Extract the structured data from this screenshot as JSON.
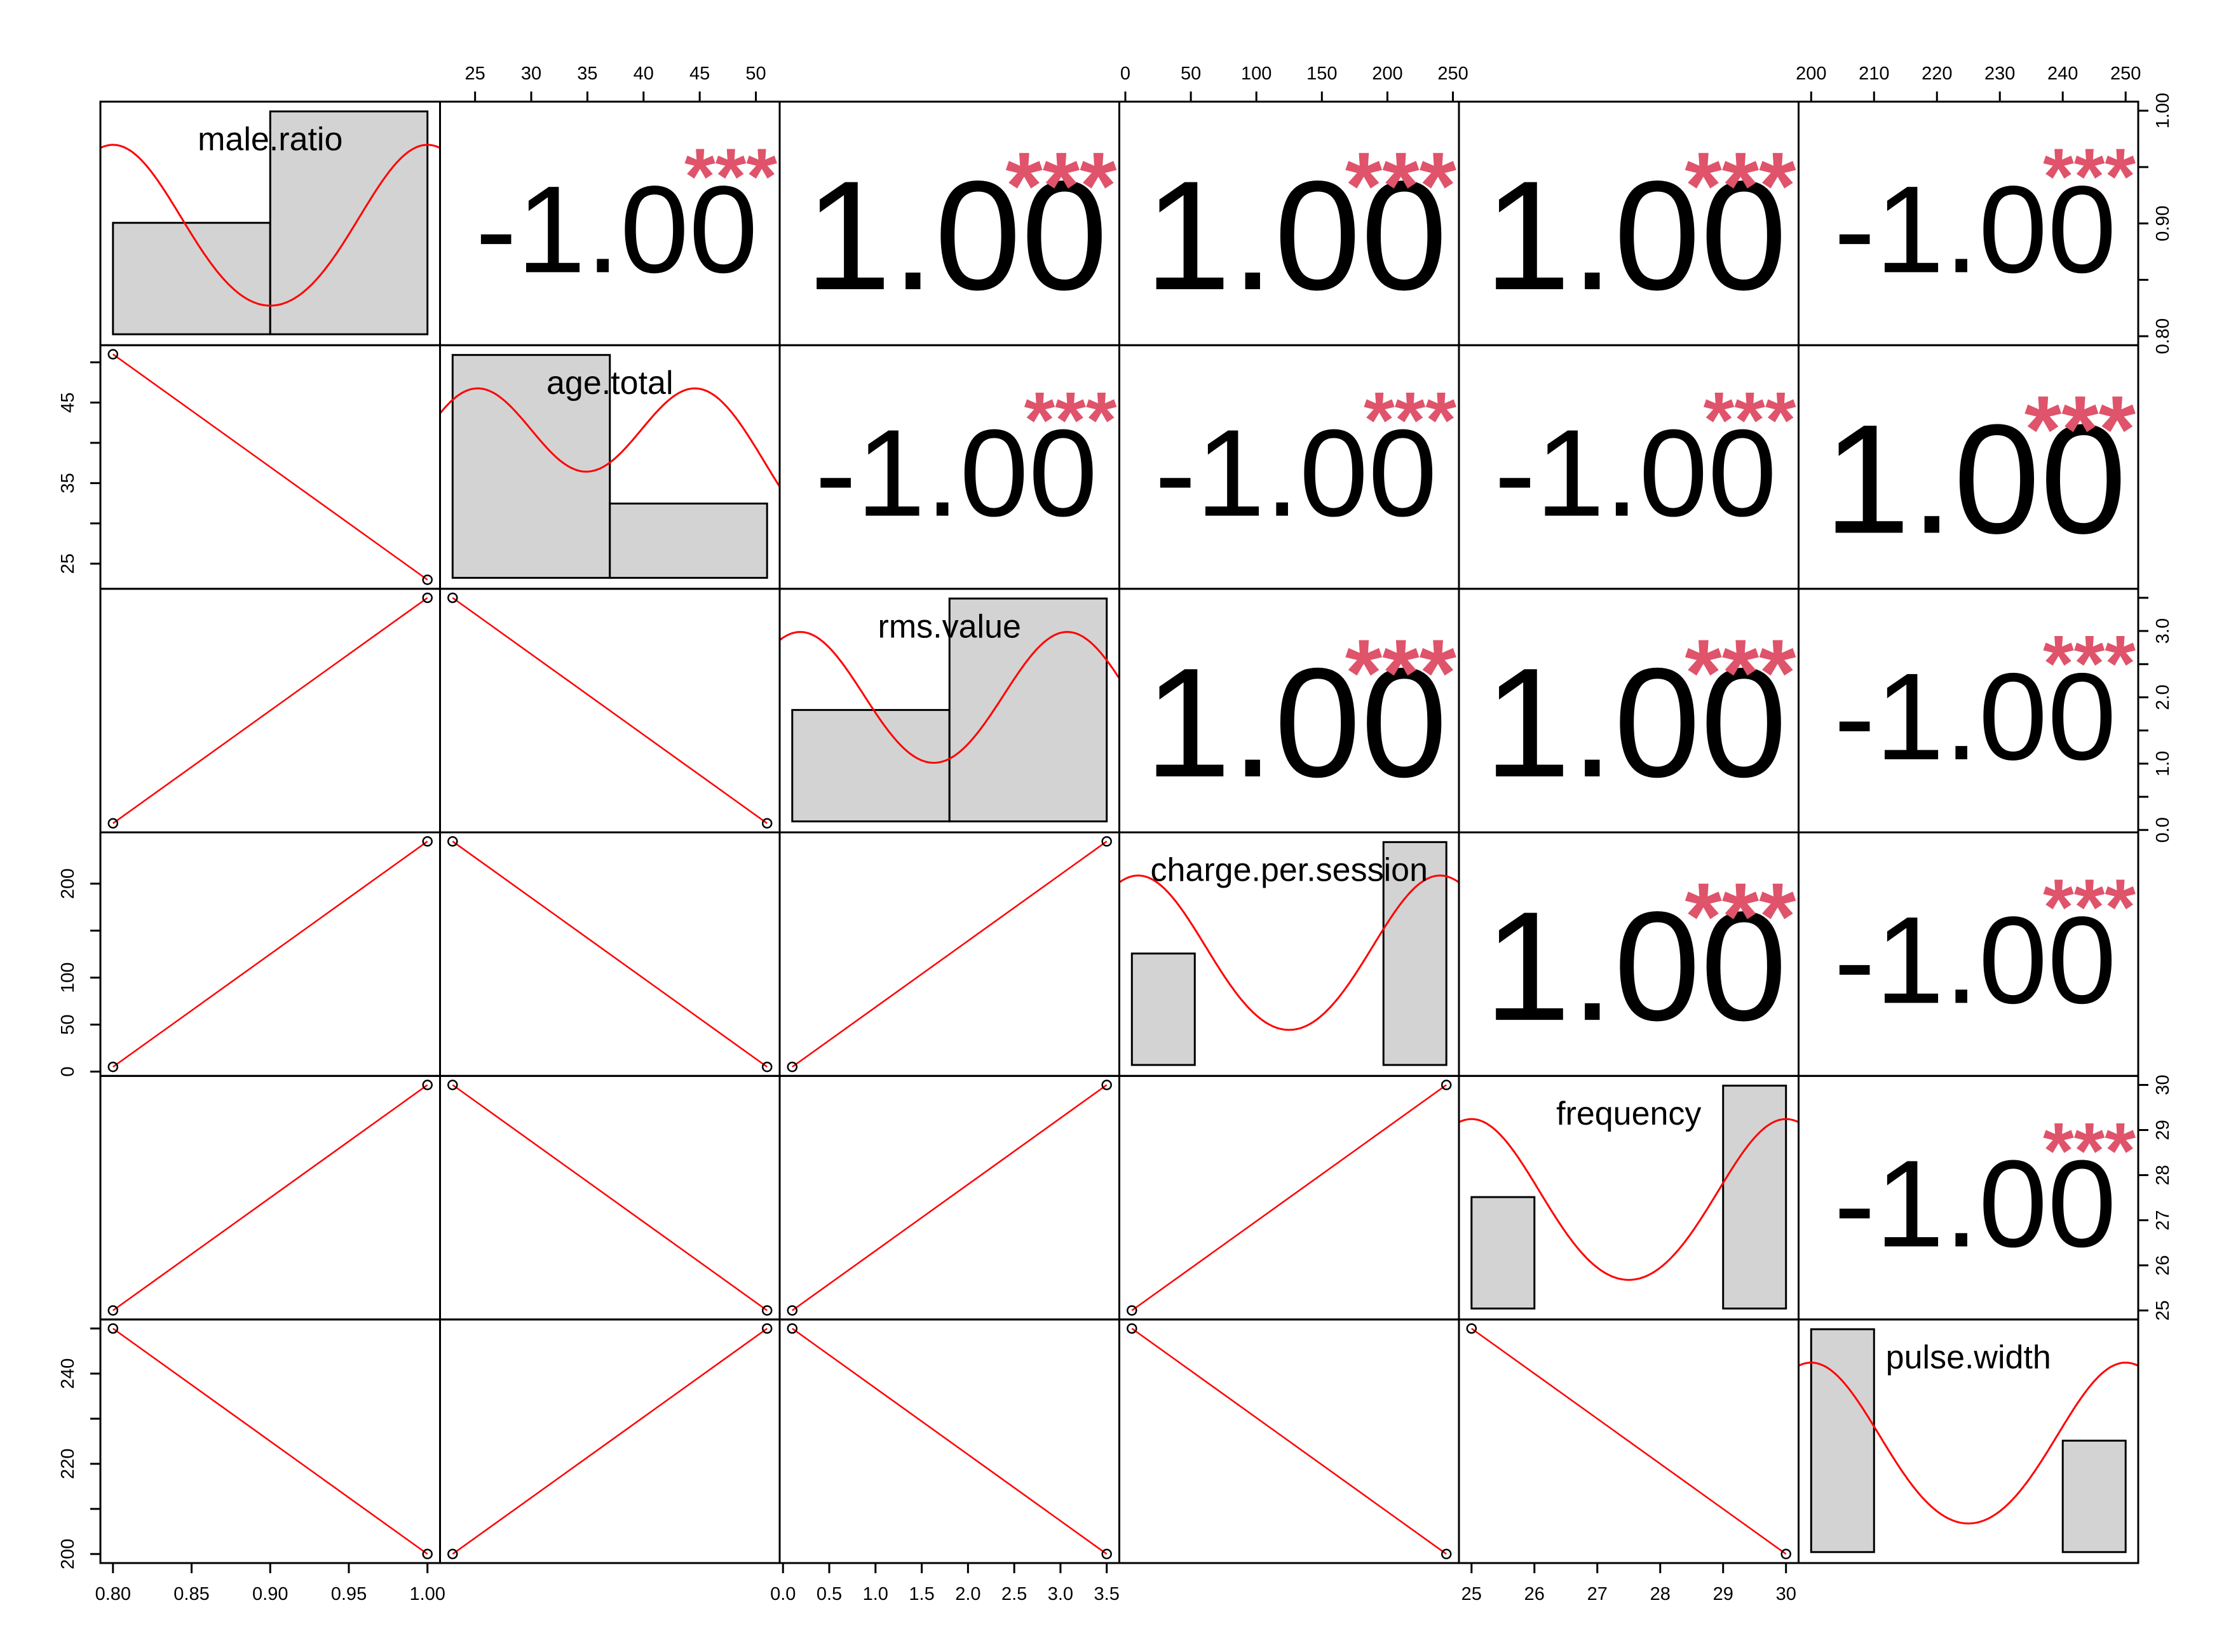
{
  "chart_data": {
    "type": "scatter-matrix",
    "variables": [
      "male.ratio",
      "age.total",
      "rms.value",
      "charge.per.session",
      "frequency",
      "pulse.width"
    ],
    "observations": [
      {
        "male.ratio": 0.8,
        "age.total": 51,
        "rms.value": 0.1,
        "charge.per.session": 5,
        "frequency": 25,
        "pulse.width": 250
      },
      {
        "male.ratio": 1.0,
        "age.total": 23,
        "rms.value": 3.5,
        "charge.per.session": 245,
        "frequency": 30,
        "pulse.width": 200
      }
    ],
    "correlations": [
      {
        "row": 0,
        "col": 1,
        "label": "-1.00",
        "stars": "***"
      },
      {
        "row": 0,
        "col": 2,
        "label": "1.00",
        "stars": "***"
      },
      {
        "row": 0,
        "col": 3,
        "label": "1.00",
        "stars": "***"
      },
      {
        "row": 0,
        "col": 4,
        "label": "1.00",
        "stars": "***"
      },
      {
        "row": 0,
        "col": 5,
        "label": "-1.00",
        "stars": "***"
      },
      {
        "row": 1,
        "col": 2,
        "label": "-1.00",
        "stars": "***"
      },
      {
        "row": 1,
        "col": 3,
        "label": "-1.00",
        "stars": "***"
      },
      {
        "row": 1,
        "col": 4,
        "label": "-1.00",
        "stars": "***"
      },
      {
        "row": 1,
        "col": 5,
        "label": "1.00",
        "stars": "***"
      },
      {
        "row": 2,
        "col": 3,
        "label": "1.00",
        "stars": "***"
      },
      {
        "row": 2,
        "col": 4,
        "label": "1.00",
        "stars": "***"
      },
      {
        "row": 2,
        "col": 5,
        "label": "-1.00",
        "stars": "***"
      },
      {
        "row": 3,
        "col": 4,
        "label": "1.00",
        "stars": "***"
      },
      {
        "row": 3,
        "col": 5,
        "label": "-1.00",
        "stars": "***"
      },
      {
        "row": 4,
        "col": 5,
        "label": "-1.00",
        "stars": "***"
      }
    ],
    "ranges": [
      [
        0.8,
        1.0
      ],
      [
        23,
        51
      ],
      [
        0.1,
        3.5
      ],
      [
        5,
        245
      ],
      [
        25,
        30
      ],
      [
        200,
        250
      ]
    ],
    "histograms": [
      {
        "breaks": [
          0.8,
          0.9,
          1.0
        ],
        "counts": [
          1,
          2
        ]
      },
      {
        "breaks": [
          20,
          40,
          60
        ],
        "counts": [
          1.5,
          0.5
        ]
      },
      {
        "breaks": [
          0,
          2,
          4
        ],
        "counts": [
          1,
          2
        ]
      },
      {
        "breaks": [
          0,
          50,
          100,
          150,
          200,
          250
        ],
        "counts": [
          1,
          0,
          0,
          0,
          2
        ]
      },
      {
        "breaks": [
          25,
          26,
          27,
          28,
          29,
          30
        ],
        "counts": [
          1,
          0,
          0,
          0,
          2
        ]
      },
      {
        "breaks": [
          200,
          210,
          220,
          230,
          240,
          250
        ],
        "counts": [
          2,
          0,
          0,
          0,
          1
        ]
      }
    ],
    "axes": {
      "bottom": [
        {
          "col": 0,
          "ticks": [
            0.8,
            0.85,
            0.9,
            0.95,
            1.0
          ],
          "labels": [
            "0.80",
            "0.85",
            "0.90",
            "0.95",
            "1.00"
          ]
        },
        {
          "col": 2,
          "ticks": [
            0.0,
            0.5,
            1.0,
            1.5,
            2.0,
            2.5,
            3.0,
            3.5
          ],
          "labels": [
            "0.0",
            "0.5",
            "1.0",
            "1.5",
            "2.0",
            "2.5",
            "3.0",
            "3.5"
          ]
        },
        {
          "col": 4,
          "ticks": [
            25,
            26,
            27,
            28,
            29,
            30
          ],
          "labels": [
            "25",
            "26",
            "27",
            "28",
            "29",
            "30"
          ]
        }
      ],
      "top": [
        {
          "col": 1,
          "ticks": [
            25,
            30,
            35,
            40,
            45,
            50
          ],
          "labels": [
            "25",
            "30",
            "35",
            "40",
            "45",
            "50"
          ]
        },
        {
          "col": 3,
          "ticks": [
            0,
            50,
            100,
            150,
            200,
            250
          ],
          "labels": [
            "0",
            "50",
            "100",
            "150",
            "200",
            "250"
          ]
        },
        {
          "col": 5,
          "ticks": [
            200,
            210,
            220,
            230,
            240,
            250
          ],
          "labels": [
            "200",
            "210",
            "220",
            "230",
            "240",
            "250"
          ]
        }
      ],
      "left": [
        {
          "row": 1,
          "ticks": [
            25,
            35,
            45
          ],
          "labels": [
            "25",
            "35",
            "45"
          ],
          "minor": [
            30,
            40,
            50
          ]
        },
        {
          "row": 3,
          "ticks": [
            0,
            50,
            100,
            200
          ],
          "labels": [
            "0",
            "50",
            "100",
            "200"
          ],
          "minor": [
            150
          ]
        },
        {
          "row": 5,
          "ticks": [
            200,
            220,
            240
          ],
          "labels": [
            "200",
            "220",
            "240"
          ],
          "minor": [
            210,
            230,
            250
          ]
        }
      ],
      "right": [
        {
          "row": 0,
          "ticks": [
            0.8,
            0.9,
            1.0
          ],
          "labels": [
            "0.80",
            "0.90",
            "1.00"
          ],
          "minor": [
            0.85,
            0.95
          ]
        },
        {
          "row": 2,
          "ticks": [
            0.0,
            1.0,
            2.0,
            3.0
          ],
          "labels": [
            "0.0",
            "1.0",
            "2.0",
            "3.0"
          ],
          "minor": [
            0.5,
            1.5,
            2.5,
            3.5
          ]
        },
        {
          "row": 4,
          "ticks": [
            25,
            26,
            27,
            28,
            29,
            30
          ],
          "labels": [
            "25",
            "26",
            "27",
            "28",
            "29",
            "30"
          ]
        }
      ]
    }
  }
}
